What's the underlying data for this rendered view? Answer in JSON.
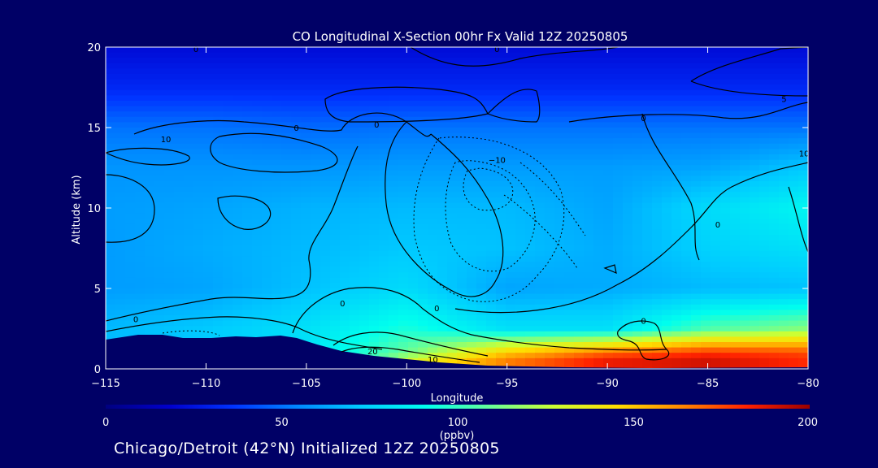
{
  "footer": "Chicago/Detroit (42°N) Initialized 12Z 20250805",
  "chart_data": {
    "type": "heatmap",
    "title": "CO Longitudinal X-Section 00hr  Fx Valid 12Z 20250805",
    "xlabel": "Longitude",
    "ylabel": "Altitude (km)",
    "xlim": [
      -115,
      -80
    ],
    "ylim": [
      0,
      20
    ],
    "x_ticks": [
      -115,
      -110,
      -105,
      -100,
      -95,
      -90,
      -85,
      -80
    ],
    "x_tick_labels": [
      "−115",
      "−110",
      "−105",
      "−100",
      "−95",
      "−90",
      "−85",
      "−80"
    ],
    "y_ticks": [
      0,
      5,
      10,
      15,
      20
    ],
    "y_tick_labels": [
      "0",
      "5",
      "10",
      "15",
      "20"
    ],
    "colorbar": {
      "min": 0,
      "max": 200,
      "ticks": [
        0,
        50,
        100,
        150,
        200
      ],
      "tick_labels": [
        "0",
        "50",
        "100",
        "150",
        "200"
      ],
      "units": "(ppbv)",
      "colors": [
        "#000080",
        "#0000cc",
        "#0033ff",
        "#0088ff",
        "#00ccff",
        "#00ffee",
        "#66ff99",
        "#ccff33",
        "#ffdd00",
        "#ff8800",
        "#ff2200",
        "#990000"
      ]
    },
    "field_ppbv": {
      "columns_lon": [
        -115,
        -110,
        -105,
        -100,
        -95,
        -90,
        -85,
        -80
      ],
      "rows_alt_km": [
        20,
        17.5,
        15,
        12.5,
        10,
        7.5,
        5,
        2.5,
        1,
        0.5
      ],
      "values": [
        [
          22,
          22,
          22,
          22,
          22,
          22,
          22,
          22
        ],
        [
          32,
          32,
          32,
          32,
          32,
          32,
          32,
          32
        ],
        [
          50,
          50,
          48,
          50,
          50,
          50,
          50,
          50
        ],
        [
          58,
          58,
          58,
          60,
          60,
          60,
          62,
          72
        ],
        [
          60,
          62,
          66,
          68,
          68,
          62,
          78,
          88
        ],
        [
          60,
          64,
          68,
          72,
          70,
          64,
          75,
          80
        ],
        [
          60,
          62,
          70,
          78,
          62,
          64,
          68,
          70
        ],
        [
          68,
          72,
          80,
          95,
          80,
          80,
          105,
          115
        ],
        [
          null,
          null,
          null,
          110,
          150,
          170,
          180,
          175
        ],
        [
          null,
          null,
          null,
          130,
          165,
          185,
          190,
          180
        ]
      ]
    },
    "contour_labels": [
      {
        "text": "0",
        "lon": -110.5,
        "alt": 19.9
      },
      {
        "text": "0",
        "lon": -95.5,
        "alt": 19.9
      },
      {
        "text": "0",
        "lon": -101.5,
        "alt": 15.2
      },
      {
        "text": "0",
        "lon": -105.5,
        "alt": 15.0
      },
      {
        "text": "0",
        "lon": -88.2,
        "alt": 15.6
      },
      {
        "text": "10",
        "lon": -112.0,
        "alt": 14.3
      },
      {
        "text": "−10",
        "lon": -95.5,
        "alt": 13.0
      },
      {
        "text": "5",
        "lon": -81.2,
        "alt": 16.8
      },
      {
        "text": "10",
        "lon": -80.2,
        "alt": 13.4
      },
      {
        "text": "0",
        "lon": -84.5,
        "alt": 9.0
      },
      {
        "text": "0",
        "lon": -113.5,
        "alt": 3.1
      },
      {
        "text": "0",
        "lon": -103.2,
        "alt": 4.1
      },
      {
        "text": "0",
        "lon": -98.5,
        "alt": 3.8
      },
      {
        "text": "0",
        "lon": -88.2,
        "alt": 3.0
      },
      {
        "text": "20",
        "lon": -101.7,
        "alt": 1.1
      },
      {
        "text": "10",
        "lon": -98.7,
        "alt": 0.6
      }
    ]
  }
}
